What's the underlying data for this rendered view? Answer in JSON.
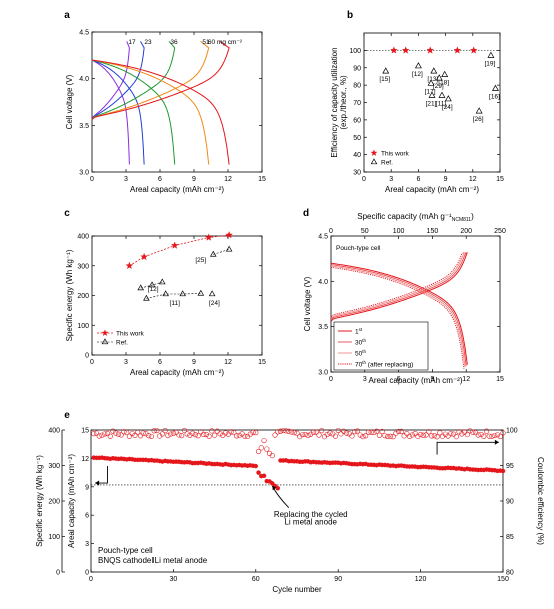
{
  "chart_data": [
    {
      "panel": "a",
      "type": "line",
      "xlabel": "Areal capacity (mAh cm⁻²)",
      "ylabel": "Cell voltage (V)",
      "xlim": [
        0,
        15
      ],
      "ylim": [
        3.0,
        4.5
      ],
      "xticks": [
        "0",
        "3",
        "6",
        "9",
        "12",
        "15"
      ],
      "yticks": [
        "3.0",
        "3.5",
        "4.0",
        "4.5"
      ],
      "loading_labels": [
        "17",
        "23",
        "36",
        "51",
        "60 mg cm⁻²"
      ],
      "series": [
        {
          "label_index": 0,
          "color": "#8B2BE2",
          "capacity": 3.3
        },
        {
          "label_index": 1,
          "color": "#1f3fd6",
          "capacity": 4.6
        },
        {
          "label_index": 2,
          "color": "#1f9a2e",
          "capacity": 7.3
        },
        {
          "label_index": 3,
          "color": "#f08a16",
          "capacity": 10.3
        },
        {
          "label_index": 4,
          "color": "#e4161b",
          "capacity": 12.1
        }
      ]
    },
    {
      "panel": "b",
      "type": "scatter",
      "xlabel": "Areal capacity (mAh cm⁻²)",
      "ylabel": "Efficiency of capacity utilization (exp./theor., %)",
      "xlim": [
        0,
        15
      ],
      "ylim": [
        30,
        110
      ],
      "xticks": [
        "0",
        "3",
        "6",
        "9",
        "12",
        "15"
      ],
      "yticks": [
        "30",
        "40",
        "50",
        "60",
        "70",
        "80",
        "90",
        "100"
      ],
      "legend": [
        "This work",
        "Ref."
      ],
      "this_work": [
        [
          3.3,
          100
        ],
        [
          4.6,
          100
        ],
        [
          7.3,
          100
        ],
        [
          10.3,
          100
        ],
        [
          12.1,
          100
        ]
      ],
      "refs": [
        {
          "label": "[15]",
          "x": 2.4,
          "y": 88
        },
        {
          "label": "[12]",
          "x": 6.0,
          "y": 91
        },
        {
          "label": "[13]",
          "x": 7.7,
          "y": 88
        },
        {
          "label": "[18]",
          "x": 8.9,
          "y": 86
        },
        {
          "label": "[29]",
          "x": 8.3,
          "y": 84
        },
        {
          "label": "[17]",
          "x": 7.4,
          "y": 81
        },
        {
          "label": "[21]",
          "x": 7.5,
          "y": 74
        },
        {
          "label": "[11]",
          "x": 8.6,
          "y": 74
        },
        {
          "label": "[24]",
          "x": 9.3,
          "y": 72
        },
        {
          "label": "[19]",
          "x": 14.0,
          "y": 97
        },
        {
          "label": "[16]",
          "x": 14.5,
          "y": 78
        },
        {
          "label": "[26]",
          "x": 12.7,
          "y": 65
        }
      ]
    },
    {
      "panel": "c",
      "type": "scatter",
      "xlabel": "Areal capacity (mAh cm⁻²)",
      "ylabel": "Specific energy (Wh kg⁻¹)",
      "xlim": [
        0,
        15
      ],
      "ylim": [
        0,
        400
      ],
      "xticks": [
        "0",
        "3",
        "6",
        "9",
        "12",
        "15"
      ],
      "yticks": [
        "0",
        "100",
        "200",
        "300",
        "400"
      ],
      "legend": [
        "This work",
        "Ref."
      ],
      "this_work": [
        [
          3.3,
          300
        ],
        [
          4.6,
          330
        ],
        [
          7.3,
          368
        ],
        [
          10.3,
          395
        ],
        [
          12.1,
          403
        ]
      ],
      "refs": [
        {
          "group": "[25]",
          "points": [
            [
              10.7,
              338
            ],
            [
              12.1,
              355
            ]
          ]
        },
        {
          "group": "[12]",
          "points": [
            [
              4.3,
              225
            ],
            [
              5.3,
              235
            ],
            [
              6.2,
              245
            ]
          ]
        },
        {
          "group": "[11]",
          "points": [
            [
              4.8,
              190
            ],
            [
              6.5,
              205
            ],
            [
              8.0,
              205
            ],
            [
              9.6,
              207
            ]
          ]
        },
        {
          "group": "[24]",
          "points": [
            [
              10.6,
              205
            ]
          ]
        }
      ],
      "ref_labels": [
        "[25]",
        "[12]",
        "[11]",
        "[24]"
      ]
    },
    {
      "panel": "d",
      "type": "line",
      "xlabel": "Areal capacity (mAh cm⁻²)",
      "top_xlabel": "Specific capacity (mAh g⁻¹)",
      "top_xlabel_sub": "NCM811",
      "ylabel": "Cell voltage (V)",
      "xlim": [
        0,
        15
      ],
      "ylim": [
        3.0,
        4.5
      ],
      "top_xlim": [
        0,
        250
      ],
      "xticks": [
        "0",
        "3",
        "6",
        "9",
        "12",
        "15"
      ],
      "top_xticks": [
        "0",
        "50",
        "100",
        "150",
        "200",
        "250"
      ],
      "yticks": [
        "3.0",
        "3.5",
        "4.0",
        "4.5"
      ],
      "note": "Pouch-type cell",
      "legend": [
        "1st",
        "30th",
        "50th",
        "70th (after replacing)"
      ],
      "legend_sup": [
        "st",
        "th",
        "th",
        "th"
      ],
      "legend_main": [
        "1",
        "30",
        "50",
        "70"
      ],
      "legend_tail": [
        "",
        "",
        "",
        " (after replacing)"
      ],
      "capacities": [
        12.1,
        12.0,
        11.9,
        11.8
      ]
    },
    {
      "panel": "e",
      "type": "scatter",
      "xlabel": "Cycle number",
      "ylabel_outer": "Specific energy (Wh kg⁻¹)",
      "ylabel_inner": "Areal capacity (mAh cm⁻²)",
      "ylabel_right": "Coulombic efficiency (%)",
      "xlim": [
        0,
        150
      ],
      "areal_ylim": [
        0,
        15
      ],
      "energy_ylim": [
        0,
        400
      ],
      "ce_ylim": [
        80,
        100
      ],
      "xticks": [
        "0",
        "30",
        "60",
        "90",
        "120",
        "150"
      ],
      "areal_ticks": [
        "0",
        "3",
        "6",
        "9",
        "12",
        "15"
      ],
      "energy_ticks": [
        "0",
        "100",
        "200",
        "300",
        "400"
      ],
      "ce_ticks": [
        "80",
        "85",
        "90",
        "95",
        "100"
      ],
      "annotation": [
        "Replacing the cycled",
        "Li metal anode"
      ],
      "note": [
        "Pouch-type cell",
        "BNQS cathode‖Li metal anode"
      ],
      "reference_line_areal": 9.2,
      "capacity_start": 12.1,
      "capacity_before_drop": 11.2,
      "capacity_after_replace": 11.8,
      "capacity_end": 10.7,
      "ce_typical": 99.5
    }
  ]
}
